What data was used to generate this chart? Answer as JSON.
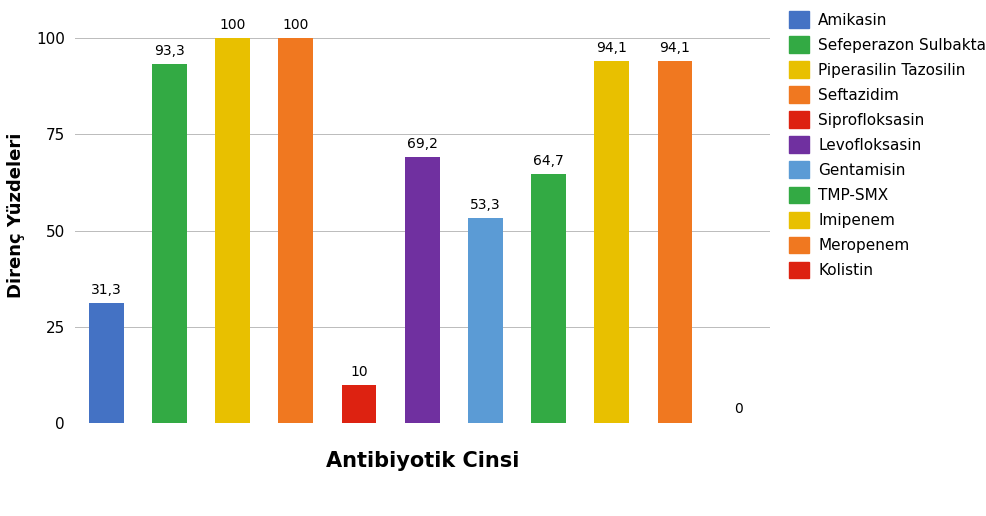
{
  "categories": [
    "Amikasin",
    "Sefeperazon Sulbaktam",
    "Piperasilin Tazosilin",
    "Seftazidim",
    "Siprofloksasin",
    "Levofloksasin",
    "Gentamisin",
    "TMP-SMX",
    "Imipenem",
    "Meropenem",
    "Kolistin"
  ],
  "values": [
    31.3,
    93.3,
    100,
    100,
    10,
    69.2,
    53.3,
    64.7,
    94.1,
    94.1,
    0
  ],
  "bar_colors": [
    "#4472C4",
    "#33AA44",
    "#E8C000",
    "#F07820",
    "#DD2211",
    "#7030A0",
    "#5B9BD5",
    "#33AA44",
    "#E8C000",
    "#F07820",
    "#DD2211"
  ],
  "legend_labels": [
    "Amikasin",
    "Sefeperazon Sulbaktam",
    "Piperasilin Tazosilin",
    "Seftazidim",
    "Siprofloksasin",
    "Levofloksasin",
    "Gentamisin",
    "TMP-SMX",
    "Imipenem",
    "Meropenem",
    "Kolistin"
  ],
  "legend_colors": [
    "#4472C4",
    "#33AA44",
    "#E8C000",
    "#F07820",
    "#DD2211",
    "#7030A0",
    "#5B9BD5",
    "#33AA44",
    "#E8C000",
    "#F07820",
    "#DD2211"
  ],
  "value_labels": [
    "31,3",
    "93,3",
    "100",
    "100",
    "10",
    "69,2",
    "53,3",
    "64,7",
    "94,1",
    "94,1",
    "0"
  ],
  "ylabel": "Direnç Yüzdeleri",
  "xlabel": "Antibiyotik Cinsi",
  "ylim": [
    0,
    108
  ],
  "yticks": [
    0,
    25,
    50,
    75,
    100
  ],
  "background_color": "#ffffff",
  "grid_color": "#bbbbbb",
  "axis_label_fontsize": 13,
  "xlabel_fontsize": 15,
  "bar_label_fontsize": 10,
  "legend_fontsize": 11,
  "bar_width": 0.55
}
